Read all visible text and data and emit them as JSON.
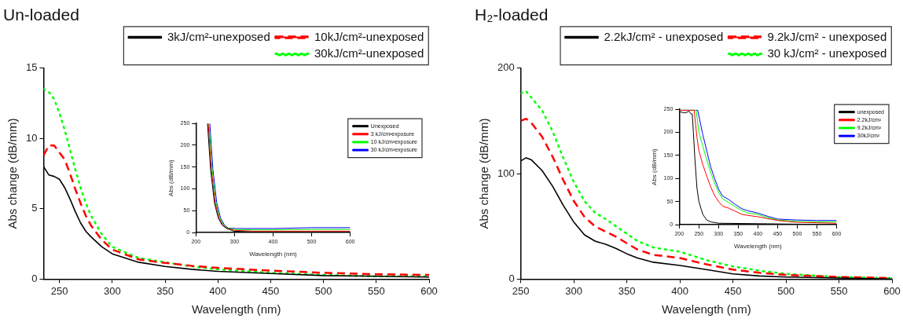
{
  "chart_data": [
    {
      "type": "line",
      "title": "Un-loaded",
      "xlabel": "Wavelength (nm)",
      "ylabel": "Abs change (dB/mm)",
      "xlim": [
        235,
        600
      ],
      "xticks": [
        250,
        300,
        350,
        400,
        450,
        500,
        550,
        600
      ],
      "ylim": [
        0,
        15
      ],
      "yticks": [
        0,
        5,
        10,
        15
      ],
      "legend": "top right",
      "marker": "none",
      "series": [
        {
          "name": "3kJ/cm²-unexposed",
          "color": "#000000",
          "line_style": "solid",
          "x": [
            235,
            240,
            245,
            250,
            255,
            260,
            265,
            270,
            275,
            280,
            290,
            300,
            325,
            350,
            375,
            400,
            450,
            500,
            550,
            600
          ],
          "values": [
            8.0,
            7.4,
            7.3,
            7.1,
            6.5,
            5.7,
            4.8,
            4.0,
            3.4,
            3.0,
            2.3,
            1.8,
            1.2,
            0.9,
            0.7,
            0.55,
            0.4,
            0.25,
            0.2,
            0.15
          ]
        },
        {
          "name": "10kJ/cm²-unexposed",
          "color": "#ff0000",
          "line_style": "dashed",
          "x": [
            235,
            240,
            245,
            250,
            255,
            260,
            265,
            270,
            275,
            280,
            290,
            300,
            325,
            350,
            375,
            400,
            450,
            500,
            550,
            600
          ],
          "values": [
            8.8,
            9.5,
            9.5,
            9.0,
            8.5,
            7.5,
            6.4,
            5.4,
            4.5,
            3.8,
            2.8,
            2.1,
            1.4,
            1.15,
            0.95,
            0.8,
            0.6,
            0.45,
            0.35,
            0.3
          ]
        },
        {
          "name": "30kJ/cm²-unexposed",
          "color": "#00ff00",
          "line_style": "dotted",
          "x": [
            235,
            240,
            245,
            250,
            255,
            260,
            265,
            270,
            275,
            280,
            290,
            300,
            325,
            350,
            375,
            400,
            450,
            500,
            550,
            600
          ],
          "values": [
            13.5,
            13.3,
            12.8,
            11.8,
            10.6,
            9.2,
            7.8,
            6.5,
            5.4,
            4.5,
            3.2,
            2.3,
            1.5,
            1.2,
            0.9,
            0.7,
            0.45,
            0.3,
            0.2,
            0.2
          ]
        }
      ]
    },
    {
      "type": "line",
      "xlabel": "Wavelength (nm)",
      "ylabel": "Abs (dB/mm)",
      "xlim": [
        200,
        600
      ],
      "xticks": [
        200,
        300,
        400,
        500,
        600
      ],
      "ylim": [
        0,
        250
      ],
      "yticks": [
        0,
        50,
        100,
        150,
        200,
        250
      ],
      "legend": "right",
      "marker": "none",
      "series": [
        {
          "name": "Unexposed",
          "color": "#000000",
          "line_style": "solid",
          "x": [
            230,
            238,
            248,
            258,
            268,
            278,
            298,
            350,
            400,
            500,
            600
          ],
          "values": [
            250,
            145,
            68,
            33,
            17,
            10,
            3,
            1,
            1,
            1,
            1
          ]
        },
        {
          "name": "3 kJ/cm²exposure",
          "color": "#ff0000",
          "line_style": "solid",
          "x": [
            232,
            240,
            250,
            260,
            270,
            280,
            300,
            350,
            400,
            500,
            600
          ],
          "values": [
            250,
            145,
            68,
            33,
            17,
            10,
            5,
            3,
            3,
            3,
            3
          ]
        },
        {
          "name": "10 kJ/cm²exposure",
          "color": "#00ff00",
          "line_style": "solid",
          "x": [
            234,
            242,
            252,
            262,
            272,
            282,
            302,
            350,
            400,
            500,
            600
          ],
          "values": [
            250,
            145,
            68,
            33,
            17,
            10,
            7,
            6,
            6,
            7,
            7
          ]
        },
        {
          "name": "30 kJ/cm²exposure",
          "color": "#0000ff",
          "line_style": "solid",
          "x": [
            236,
            244,
            254,
            264,
            274,
            284,
            304,
            350,
            400,
            500,
            600
          ],
          "values": [
            250,
            145,
            68,
            33,
            17,
            10,
            9,
            9,
            9,
            11,
            11
          ]
        }
      ]
    },
    {
      "type": "line",
      "title": "H₂-loaded",
      "xlabel": "Wavelength (nm)",
      "ylabel": "Abs change (dB/mm)",
      "xlim": [
        250,
        600
      ],
      "xticks": [
        250,
        300,
        350,
        400,
        450,
        500,
        550,
        600
      ],
      "ylim": [
        0,
        200
      ],
      "yticks": [
        0,
        100,
        200
      ],
      "legend": "top right",
      "marker": "none",
      "series": [
        {
          "name": "2.2kJ/cm² - unexposed",
          "color": "#000000",
          "line_style": "solid",
          "x": [
            250,
            255,
            260,
            270,
            280,
            290,
            300,
            310,
            320,
            330,
            340,
            350,
            360,
            375,
            400,
            425,
            450,
            475,
            500,
            550,
            600
          ],
          "values": [
            112,
            115,
            113,
            103,
            88,
            70,
            54,
            42,
            36,
            33,
            29,
            24,
            20,
            16,
            13,
            9,
            5,
            3,
            2,
            1,
            0
          ]
        },
        {
          "name": "9.2kJ/cm² - unexposed",
          "color": "#ff0000",
          "line_style": "dashed",
          "x": [
            250,
            255,
            260,
            270,
            280,
            290,
            300,
            310,
            320,
            330,
            340,
            350,
            360,
            375,
            400,
            425,
            450,
            475,
            500,
            550,
            600
          ],
          "values": [
            150,
            152,
            148,
            135,
            116,
            94,
            74,
            59,
            50,
            45,
            40,
            34,
            28,
            23,
            20,
            14,
            9,
            6,
            4,
            2,
            1
          ]
        },
        {
          "name": "30 kJ/cm² - unexposed",
          "color": "#00ff00",
          "line_style": "dotted",
          "x": [
            250,
            255,
            260,
            270,
            280,
            290,
            300,
            310,
            320,
            330,
            340,
            350,
            360,
            375,
            400,
            425,
            450,
            475,
            500,
            550,
            600
          ],
          "values": [
            176,
            178,
            172,
            160,
            140,
            115,
            92,
            74,
            63,
            57,
            50,
            43,
            36,
            30,
            26,
            18,
            12,
            8,
            5,
            2,
            1
          ]
        }
      ]
    },
    {
      "type": "line",
      "xlabel": "Wavelength (nm)",
      "ylabel": "Abs (dB/mm)",
      "xlim": [
        200,
        600
      ],
      "xticks": [
        200,
        250,
        300,
        350,
        400,
        450,
        500,
        550,
        600
      ],
      "ylim": [
        0,
        250
      ],
      "yticks": [
        0,
        50,
        100,
        150,
        200,
        250
      ],
      "legend": "right",
      "marker": "none",
      "series": [
        {
          "name": "unexposed",
          "color": "#000000",
          "line_style": "solid",
          "x": [
            200,
            215,
            225,
            230,
            233,
            236,
            240,
            245,
            250,
            260,
            270,
            280,
            300,
            400,
            600
          ],
          "values": [
            245,
            242,
            246,
            240,
            240,
            200,
            140,
            80,
            50,
            22,
            10,
            6,
            3,
            2,
            0
          ]
        },
        {
          "name": "2.2kJ/cm²",
          "color": "#ff0000",
          "line_style": "solid",
          "x": [
            200,
            238,
            240,
            245,
            250,
            260,
            270,
            280,
            290,
            300,
            310,
            325,
            340,
            360,
            375,
            400,
            425,
            450,
            500,
            550,
            600
          ],
          "values": [
            248,
            248,
            230,
            190,
            160,
            130,
            105,
            82,
            63,
            50,
            40,
            36,
            30,
            22,
            20,
            17,
            13,
            9,
            5,
            4,
            3
          ]
        },
        {
          "name": "9.2kJ/cm²",
          "color": "#00ff00",
          "line_style": "solid",
          "x": [
            200,
            243,
            250,
            260,
            270,
            280,
            290,
            300,
            310,
            325,
            340,
            360,
            375,
            400,
            425,
            450,
            500,
            550,
            600
          ],
          "values": [
            248,
            248,
            200,
            170,
            140,
            113,
            90,
            70,
            56,
            48,
            40,
            30,
            25,
            22,
            15,
            10,
            7,
            6,
            6
          ]
        },
        {
          "name": "30kJ/cm²",
          "color": "#0000ff",
          "line_style": "solid",
          "x": [
            200,
            247,
            255,
            260,
            270,
            280,
            290,
            300,
            310,
            325,
            340,
            360,
            375,
            400,
            425,
            450,
            500,
            550,
            600
          ],
          "values": [
            248,
            248,
            215,
            195,
            160,
            125,
            100,
            77,
            62,
            55,
            45,
            34,
            30,
            25,
            18,
            12,
            10,
            9,
            9
          ]
        }
      ]
    }
  ]
}
